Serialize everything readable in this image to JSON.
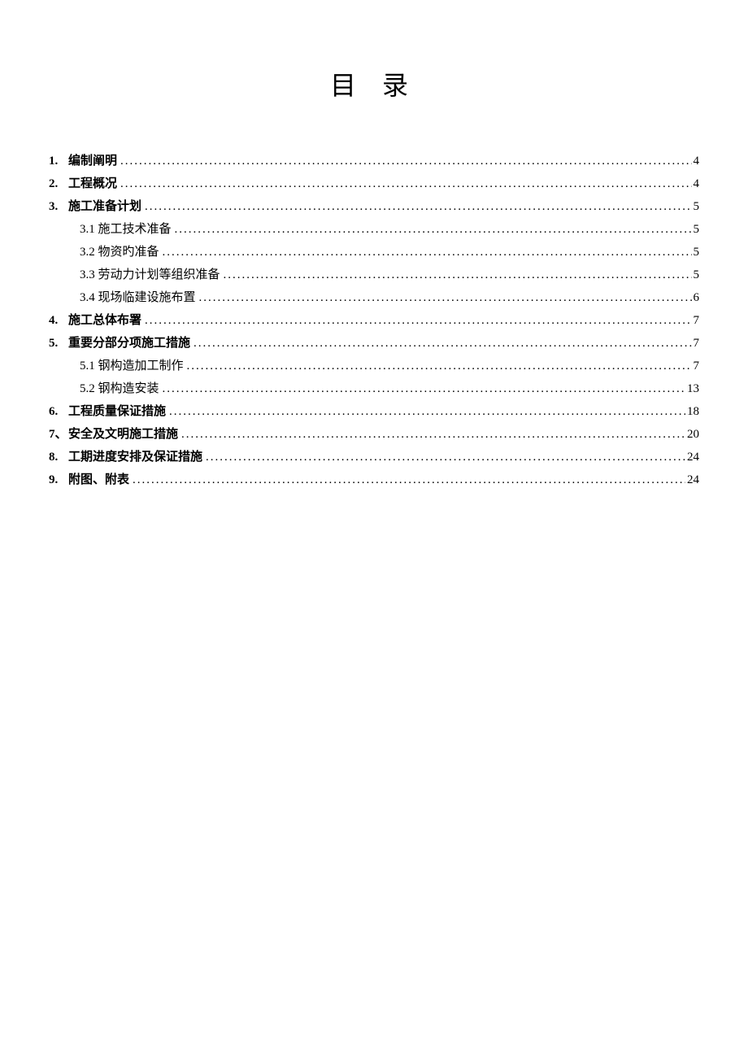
{
  "title": "目 录",
  "entries": [
    {
      "level": 1,
      "num": "1.",
      "label": "编制阐明",
      "page": "4"
    },
    {
      "level": 1,
      "num": "2.",
      "label": "工程概况",
      "page": "4"
    },
    {
      "level": 1,
      "num": "3.",
      "label": "施工准备计划",
      "page": "5"
    },
    {
      "level": 2,
      "num": "",
      "label": "3.1 施工技术准备",
      "page": "5"
    },
    {
      "level": 2,
      "num": "",
      "label": "3.2 物资旳准备",
      "page": "5"
    },
    {
      "level": 2,
      "num": "",
      "label": "3.3 劳动力计划等组织准备",
      "page": "5"
    },
    {
      "level": 2,
      "num": "",
      "label": "3.4 现场临建设施布置",
      "page": "6"
    },
    {
      "level": 1,
      "num": "4.",
      "label": "施工总体布署",
      "page": "7"
    },
    {
      "level": 1,
      "num": "5.",
      "label": "重要分部分项施工措施",
      "page": "7"
    },
    {
      "level": 2,
      "num": "",
      "label": "5.1 钢构造加工制作",
      "page": "7"
    },
    {
      "level": 2,
      "num": "",
      "label": "5.2 钢构造安装",
      "page": "13"
    },
    {
      "level": 1,
      "num": "6.",
      "label": "工程质量保证措施",
      "page": "18"
    },
    {
      "level": 1,
      "num": "7、",
      "label": "安全及文明施工措施",
      "page": "20"
    },
    {
      "level": 1,
      "num": "8.",
      "label": "工期进度安排及保证措施",
      "page": "24"
    },
    {
      "level": 1,
      "num": "9.",
      "label": "附图、附表",
      "page": "24"
    }
  ]
}
